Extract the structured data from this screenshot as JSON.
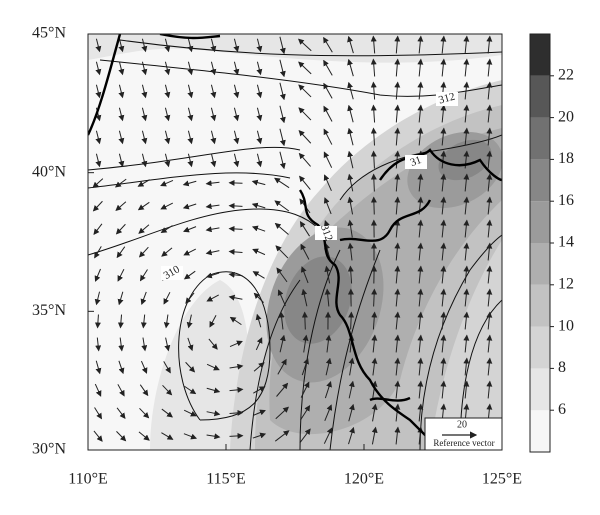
{
  "chart_data": {
    "type": "map",
    "xlim": [
      110,
      125
    ],
    "xticks": [
      {
        "value": 110,
        "label": "110°E"
      },
      {
        "value": 115,
        "label": "115°E"
      },
      {
        "value": 120,
        "label": "120°E"
      },
      {
        "value": 125,
        "label": "125°E"
      }
    ],
    "ylim": [
      30,
      45
    ],
    "yticks": [
      {
        "value": 30,
        "label": "30°N"
      },
      {
        "value": 35,
        "label": "35°N"
      },
      {
        "value": 40,
        "label": "40°N"
      },
      {
        "value": 45,
        "label": "45°N"
      }
    ],
    "colorbar": {
      "lim": [
        4,
        24
      ],
      "ticks": [
        6,
        8,
        10,
        12,
        14,
        16,
        18,
        20,
        22
      ],
      "colors": [
        "#f7f7f7",
        "#e6e6e6",
        "#d4d4d4",
        "#c2c2c2",
        "#afafaf",
        "#9b9b9b",
        "#878787",
        "#717171",
        "#575757",
        "#2e2e2e"
      ]
    },
    "contour_labels": [
      "312",
      "31",
      "312",
      "310"
    ],
    "reference_vector": {
      "value": 20,
      "label": "Reference vector"
    }
  }
}
